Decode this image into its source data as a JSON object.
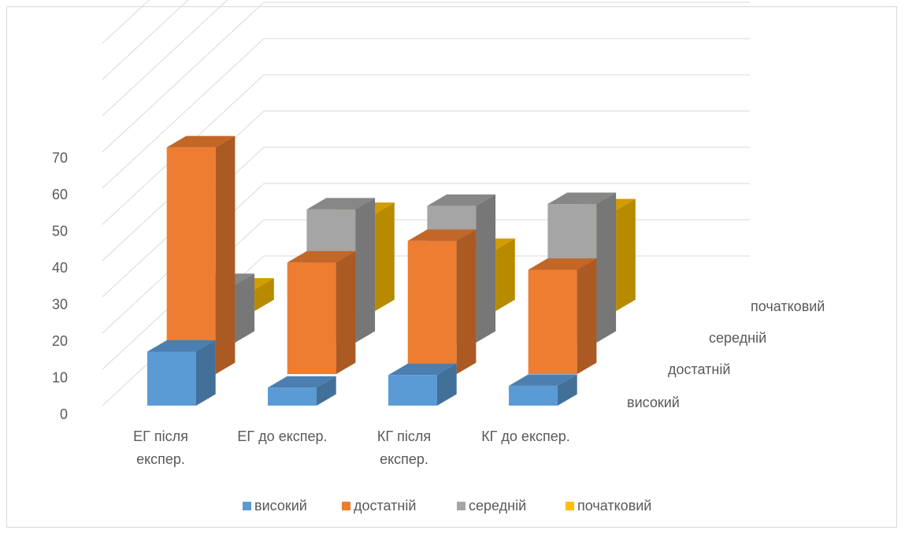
{
  "chart_data": {
    "type": "bar",
    "variant": "3d-column-depth",
    "title": "",
    "xlabel": "",
    "ylabel": "",
    "ylim": [
      0,
      70
    ],
    "yticks": [
      "0",
      "10",
      "20",
      "30",
      "40",
      "50",
      "60",
      "70"
    ],
    "grid": true,
    "legend_position": "bottom",
    "categories": [
      [
        "ЕГ після",
        "експер."
      ],
      [
        "ЕГ до експер."
      ],
      [
        "КГ після",
        "експер."
      ],
      [
        "КГ до експер."
      ]
    ],
    "series": [
      {
        "name": "високий",
        "values": [
          15,
          5,
          8.5,
          5.5
        ]
      },
      {
        "name": "достатній",
        "values": [
          63,
          31,
          37,
          29
        ]
      },
      {
        "name": "середній",
        "values": [
          16,
          37,
          38,
          38.5
        ]
      },
      {
        "name": "початковий",
        "values": [
          6,
          27,
          17,
          28
        ]
      }
    ],
    "colors": {
      "високий": "#5b9bd5",
      "достатній": "#ed7d31",
      "середній": "#a5a5a5",
      "початковий": "#ffc000"
    }
  }
}
